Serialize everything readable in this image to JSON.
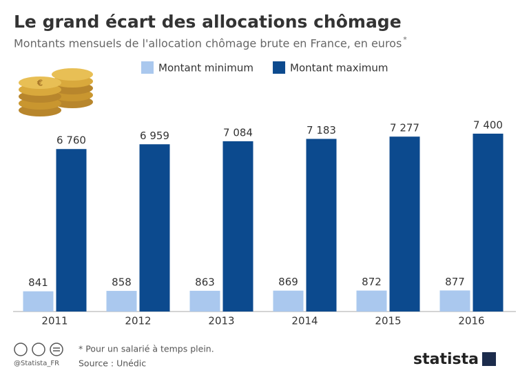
{
  "chart_data": {
    "type": "bar",
    "title": "Le grand écart des allocations chômage",
    "subtitle": "Montants mensuels de l'allocation chômage brute en France, en euros",
    "subtitle_note": "*",
    "categories": [
      "2011",
      "2012",
      "2013",
      "2014",
      "2015",
      "2016"
    ],
    "series": [
      {
        "name": "Montant minimum",
        "color": "#aac8ee",
        "values": [
          841,
          858,
          863,
          869,
          872,
          877
        ]
      },
      {
        "name": "Montant maximum",
        "color": "#0c4a8e",
        "values": [
          6760,
          6959,
          7084,
          7183,
          7277,
          7400
        ],
        "value_labels": [
          "6 760",
          "6 959",
          "7 084",
          "7 183",
          "7 277",
          "7 400"
        ]
      }
    ],
    "ylim": [
      0,
      8000
    ],
    "grid": false,
    "footnote": "* Pour un salarié à temps plein.",
    "source": "Source : Unédic",
    "handle": "@Statista_FR",
    "brand": "statista"
  }
}
